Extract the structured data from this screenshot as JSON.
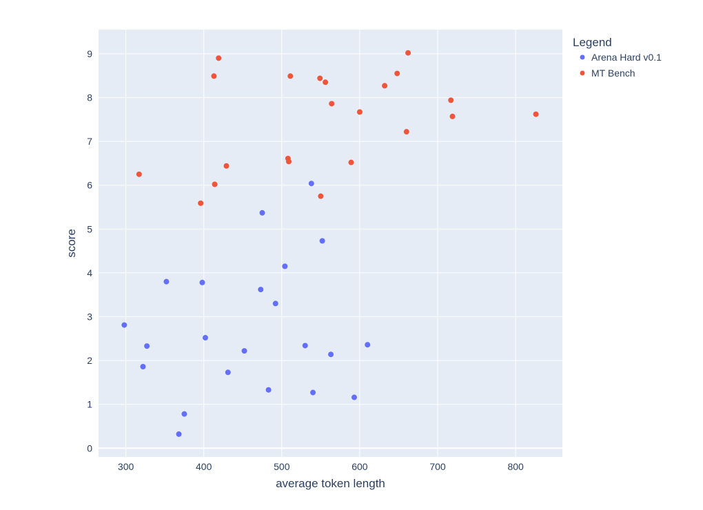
{
  "chart_data": {
    "type": "scatter",
    "xlabel": "average token length",
    "ylabel": "score",
    "xlim": [
      265,
      860
    ],
    "ylim": [
      -0.2,
      9.55
    ],
    "xticks": [
      300,
      400,
      500,
      600,
      700,
      800
    ],
    "yticks": [
      0,
      1,
      2,
      3,
      4,
      5,
      6,
      7,
      8,
      9
    ],
    "grid": true,
    "legend": {
      "title": "Legend",
      "placement": "right"
    },
    "background_color": "#e5ecf6",
    "series": [
      {
        "name": "Arena Hard v0.1",
        "color": "#636efa",
        "points": [
          [
            298,
            2.81
          ],
          [
            322,
            1.86
          ],
          [
            327,
            2.33
          ],
          [
            352,
            3.8
          ],
          [
            368,
            0.32
          ],
          [
            375,
            0.78
          ],
          [
            398,
            3.78
          ],
          [
            402,
            2.52
          ],
          [
            431,
            1.73
          ],
          [
            452,
            2.22
          ],
          [
            473,
            3.62
          ],
          [
            475,
            5.37
          ],
          [
            483,
            1.33
          ],
          [
            492,
            3.3
          ],
          [
            504,
            4.15
          ],
          [
            530,
            2.34
          ],
          [
            538,
            6.04
          ],
          [
            540,
            1.27
          ],
          [
            552,
            4.73
          ],
          [
            563,
            2.14
          ],
          [
            593,
            1.16
          ],
          [
            610,
            2.36
          ]
        ]
      },
      {
        "name": "MT Bench",
        "color": "#ef553b",
        "points": [
          [
            317,
            6.25
          ],
          [
            396,
            5.59
          ],
          [
            413,
            8.49
          ],
          [
            414,
            6.02
          ],
          [
            419,
            8.9
          ],
          [
            429,
            6.44
          ],
          [
            508,
            6.61
          ],
          [
            509,
            6.54
          ],
          [
            511,
            8.49
          ],
          [
            549,
            8.44
          ],
          [
            550,
            5.75
          ],
          [
            556,
            8.35
          ],
          [
            564,
            7.86
          ],
          [
            589,
            6.52
          ],
          [
            600,
            7.67
          ],
          [
            632,
            8.27
          ],
          [
            648,
            8.55
          ],
          [
            660,
            7.22
          ],
          [
            662,
            9.02
          ],
          [
            717,
            7.94
          ],
          [
            719,
            7.57
          ],
          [
            826,
            7.62
          ]
        ]
      }
    ]
  }
}
